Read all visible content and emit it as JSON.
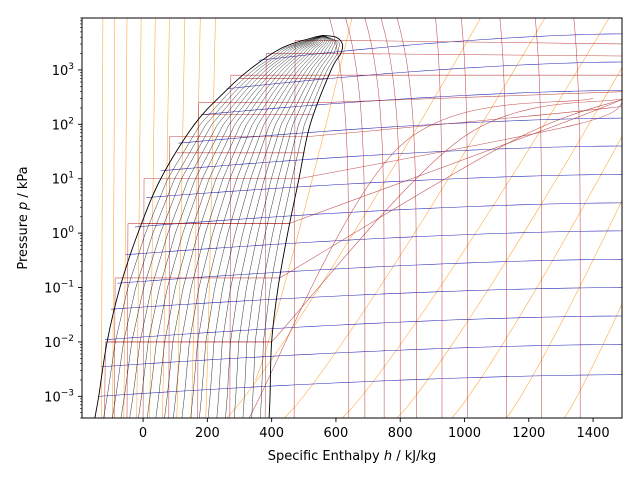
{
  "chart_data": {
    "type": "line",
    "title": "",
    "xlabel": "Specific Enthalpy h / kJ/kg",
    "ylabel": "Pressure p / kPa",
    "xlim": [
      -190,
      1490
    ],
    "ylim": [
      0.0004,
      9000
    ],
    "yscale": "log",
    "grid": false,
    "legend": "none",
    "x_ticks": [
      0,
      200,
      400,
      600,
      800,
      1000,
      1200,
      1400
    ],
    "x_tick_labels": [
      "0",
      "200",
      "400",
      "600",
      "800",
      "1000",
      "1200",
      "1400"
    ],
    "y_ticks": [
      0.001,
      0.01,
      0.1,
      1,
      10,
      100,
      1000
    ],
    "y_tick_labels": [
      {
        "base": "10",
        "exp": "−3"
      },
      {
        "base": "10",
        "exp": "−2"
      },
      {
        "base": "10",
        "exp": "−1"
      },
      {
        "base": "10",
        "exp": "0"
      },
      {
        "base": "10",
        "exp": "1"
      },
      {
        "base": "10",
        "exp": "2"
      },
      {
        "base": "10",
        "exp": "3"
      }
    ],
    "critical_point": {
      "h": 560,
      "p": 4300
    },
    "saturation_dome": {
      "liquid": [
        [
          -150,
          0.0004
        ],
        [
          -138,
          0.001
        ],
        [
          -112,
          0.01
        ],
        [
          -72,
          0.1
        ],
        [
          -16,
          1
        ],
        [
          55,
          10
        ],
        [
          160,
          100
        ],
        [
          255,
          400
        ],
        [
          330,
          1000
        ],
        [
          430,
          2500
        ],
        [
          520,
          3800
        ],
        [
          560,
          4300
        ]
      ],
      "vapor": [
        [
          560,
          4300
        ],
        [
          600,
          4000
        ],
        [
          620,
          3000
        ],
        [
          615,
          2000
        ],
        [
          585,
          1000
        ],
        [
          520,
          100
        ],
        [
          485,
          10
        ],
        [
          450,
          1
        ],
        [
          420,
          0.1
        ],
        [
          400,
          0.01
        ],
        [
          395,
          0.001
        ],
        [
          392,
          0.0004
        ]
      ]
    },
    "quality_lines": [
      0.05,
      0.1,
      0.15,
      0.2,
      0.25,
      0.3,
      0.35,
      0.4,
      0.45,
      0.5,
      0.55,
      0.6,
      0.65,
      0.7,
      0.75,
      0.8,
      0.85,
      0.9,
      0.95
    ],
    "isobars_kPa": [
      0.01,
      1.5,
      30,
      150,
      700
    ],
    "isotherms": [
      {
        "liquid_h": -150,
        "vapor_h": 330,
        "p_sat": 1e-05,
        "sh": [
          [
            800,
            40
          ],
          [
            1400,
            300
          ]
        ]
      },
      {
        "liquid_h": -120,
        "vapor_h": 400,
        "p_sat": 0.01,
        "sh": [
          [
            1000,
            60
          ],
          [
            1500,
            300
          ]
        ]
      },
      {
        "liquid_h": -90,
        "vapor_h": 425,
        "p_sat": 0.15,
        "sh": [
          [
            1150,
            50
          ],
          [
            1500,
            300
          ]
        ]
      },
      {
        "liquid_h": -50,
        "vapor_h": 455,
        "p_sat": 1.5,
        "sh": [
          [
            1250,
            80
          ],
          [
            1500,
            300
          ]
        ]
      },
      {
        "liquid_h": 0,
        "vapor_h": 485,
        "p_sat": 10,
        "sh": [
          [
            1350,
            100
          ],
          [
            1500,
            300
          ]
        ]
      },
      {
        "liquid_h": 80,
        "vapor_h": 520,
        "p_sat": 60,
        "sh": [
          [
            1450,
            200
          ],
          [
            1500,
            300
          ]
        ]
      },
      {
        "liquid_h": 170,
        "vapor_h": 555,
        "p_sat": 250,
        "sh": [
          [
            1500,
            400
          ]
        ]
      },
      {
        "liquid_h": 270,
        "vapor_h": 590,
        "p_sat": 800,
        "sh": [
          [
            1500,
            800
          ]
        ]
      },
      {
        "liquid_h": 380,
        "vapor_h": 610,
        "p_sat": 2000,
        "sh": [
          [
            1500,
            1800
          ]
        ]
      },
      {
        "liquid_h": 470,
        "vapor_h": 600,
        "p_sat": 3500,
        "sh": [
          [
            1500,
            3000
          ]
        ]
      }
    ],
    "isochores": [
      {
        "start": [
          -140,
          0.001
        ],
        "end": [
          1490,
          0.0025
        ]
      },
      {
        "start": [
          -130,
          0.0035
        ],
        "end": [
          1490,
          0.009
        ]
      },
      {
        "start": [
          -118,
          0.011
        ],
        "end": [
          1490,
          0.03
        ]
      },
      {
        "start": [
          -100,
          0.04
        ],
        "end": [
          1490,
          0.1
        ]
      },
      {
        "start": [
          -80,
          0.12
        ],
        "end": [
          1490,
          0.33
        ]
      },
      {
        "start": [
          -55,
          0.4
        ],
        "end": [
          1490,
          1.1
        ]
      },
      {
        "start": [
          -25,
          1.3
        ],
        "end": [
          1490,
          3.6
        ]
      },
      {
        "start": [
          10,
          4.5
        ],
        "end": [
          1490,
          12
        ]
      },
      {
        "start": [
          55,
          14
        ],
        "end": [
          1490,
          40
        ]
      },
      {
        "start": [
          110,
          45
        ],
        "end": [
          1490,
          130
        ]
      },
      {
        "start": [
          180,
          150
        ],
        "end": [
          1490,
          420
        ]
      },
      {
        "start": [
          260,
          450
        ],
        "end": [
          1490,
          1400
        ]
      },
      {
        "start": [
          360,
          1500
        ],
        "end": [
          1490,
          4600
        ]
      }
    ],
    "isentropes": [
      {
        "start": [
          260,
          0.0004
        ],
        "end": [
          1050,
          9000
        ]
      },
      {
        "start": [
          440,
          0.0004
        ],
        "end": [
          1250,
          9000
        ]
      },
      {
        "start": [
          620,
          0.0004
        ],
        "end": [
          1450,
          9000
        ]
      },
      {
        "start": [
          790,
          0.0004
        ],
        "end": [
          1490,
          1100
        ]
      },
      {
        "start": [
          960,
          0.0004
        ],
        "end": [
          1490,
          60
        ]
      },
      {
        "start": [
          1130,
          0.0004
        ],
        "end": [
          1490,
          4
        ]
      },
      {
        "start": [
          1310,
          0.0004
        ],
        "end": [
          1490,
          0.05
        ]
      },
      {
        "start": [
          350,
          0.002
        ],
        "end": [
          650,
          9000
        ]
      },
      {
        "start": [
          -130,
          0.0004
        ],
        "end": [
          -125,
          9000
        ]
      },
      {
        "start": [
          -95,
          0.0004
        ],
        "end": [
          -88,
          9000
        ]
      },
      {
        "start": [
          -60,
          0.0004
        ],
        "end": [
          -50,
          9000
        ]
      },
      {
        "start": [
          -20,
          0.0004
        ],
        "end": [
          -6,
          9000
        ]
      },
      {
        "start": [
          20,
          0.0004
        ],
        "end": [
          38,
          9000
        ]
      },
      {
        "start": [
          60,
          0.0004
        ],
        "end": [
          82,
          9000
        ]
      },
      {
        "start": [
          105,
          0.0004
        ],
        "end": [
          130,
          9000
        ]
      },
      {
        "start": [
          150,
          0.0004
        ],
        "end": [
          178,
          9000
        ]
      },
      {
        "start": [
          195,
          0.0004
        ],
        "end": [
          225,
          9000
        ]
      }
    ]
  },
  "colors": {
    "saturation": "#000000",
    "quality": "#000000",
    "isobar": "#b22222",
    "isotherm": "#b22222",
    "isochore": "#0000aa",
    "isentrope": "#ff8c00",
    "axes": "#000000"
  }
}
